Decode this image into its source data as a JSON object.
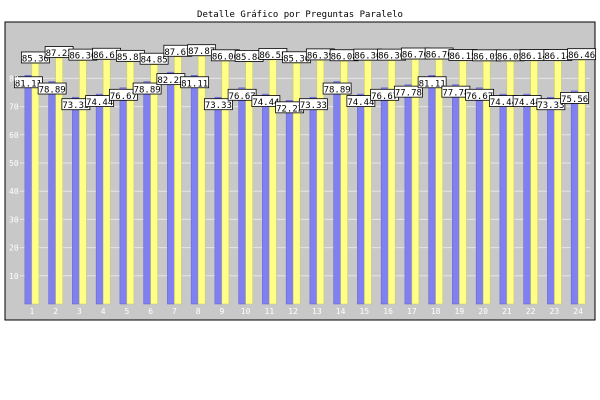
{
  "chart_data": {
    "type": "bar",
    "title": "Detalle Gráfico por Preguntas Paralelo",
    "categories": [
      "1",
      "2",
      "3",
      "4",
      "5",
      "6",
      "7",
      "8",
      "9",
      "10",
      "11",
      "12",
      "13",
      "14",
      "15",
      "16",
      "17",
      "18",
      "19",
      "20",
      "21",
      "22",
      "23",
      "24"
    ],
    "y_ticks": [
      10,
      20,
      30,
      40,
      50,
      60,
      70,
      80
    ],
    "ylim": [
      0,
      100
    ],
    "grid": true,
    "series": [
      {
        "color": "#8080f0",
        "values": [
          81.11,
          78.89,
          73.33,
          74.44,
          76.67,
          78.89,
          82.22,
          81.11,
          73.33,
          76.67,
          74.44,
          72.22,
          73.33,
          78.89,
          74.44,
          76.67,
          77.78,
          81.11,
          77.78,
          76.67,
          74.44,
          74.44,
          73.33,
          75.56
        ]
      },
      {
        "color": "#ffff88",
        "values": [
          85.3,
          87.22,
          86.3,
          86.61,
          85.87,
          84.85,
          87.67,
          87.87,
          86.06,
          85.84,
          86.55,
          85.36,
          86.39,
          86.08,
          86.3,
          86.3,
          86.7,
          86.7,
          86.15,
          86.05,
          86.05,
          86.14,
          86.14,
          86.46
        ]
      }
    ]
  }
}
